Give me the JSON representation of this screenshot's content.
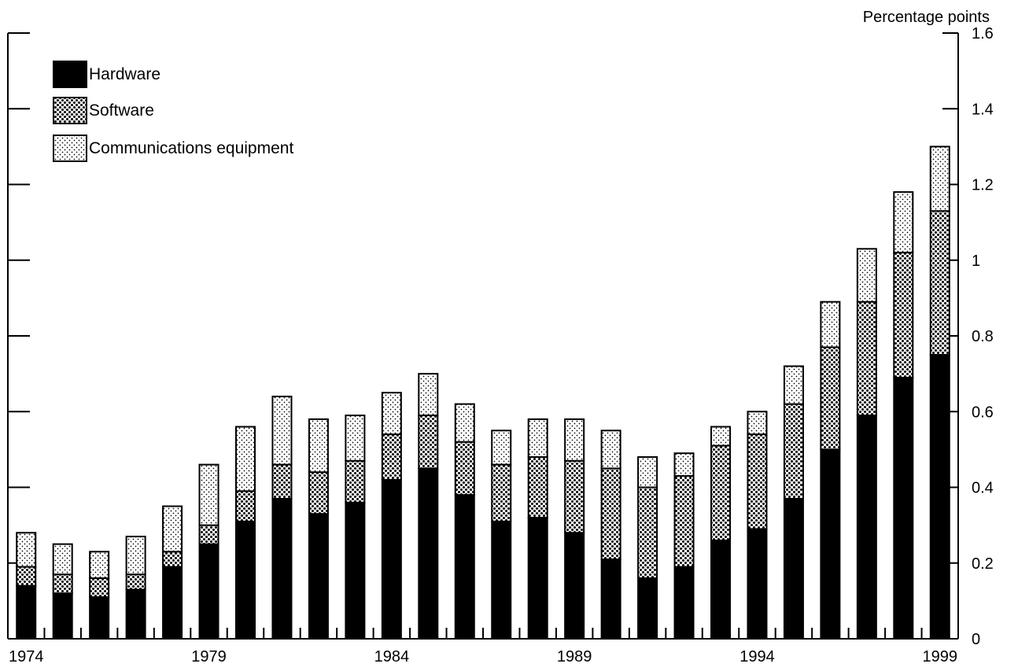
{
  "chart_data": {
    "type": "bar",
    "stacked": true,
    "title": "",
    "y_unit_label": "Percentage points",
    "x": [
      1974,
      1975,
      1976,
      1977,
      1978,
      1979,
      1980,
      1981,
      1982,
      1983,
      1984,
      1985,
      1986,
      1987,
      1988,
      1989,
      1990,
      1991,
      1992,
      1993,
      1994,
      1995,
      1996,
      1997,
      1998,
      1999
    ],
    "x_tick_labels": [
      "1974",
      "1979",
      "1984",
      "1989",
      "1994",
      "1999"
    ],
    "y_ticks": [
      0,
      0.2,
      0.4,
      0.6,
      0.8,
      1,
      1.2,
      1.4,
      1.6
    ],
    "y_tick_labels": [
      "0",
      "0.2",
      "0.4",
      "0.6",
      "0.8",
      "1",
      "1.2",
      "1.4",
      "1.6"
    ],
    "ylim": [
      0,
      1.6
    ],
    "grid": false,
    "legend_position": "top-left",
    "series": [
      {
        "name": "Hardware",
        "pattern": "solid",
        "values": [
          0.14,
          0.12,
          0.11,
          0.13,
          0.19,
          0.25,
          0.31,
          0.37,
          0.33,
          0.36,
          0.42,
          0.45,
          0.38,
          0.31,
          0.32,
          0.28,
          0.21,
          0.16,
          0.19,
          0.26,
          0.29,
          0.37,
          0.5,
          0.59,
          0.69,
          0.75
        ]
      },
      {
        "name": "Software",
        "pattern": "cross-hatch",
        "values": [
          0.05,
          0.05,
          0.05,
          0.04,
          0.04,
          0.05,
          0.08,
          0.09,
          0.11,
          0.11,
          0.12,
          0.14,
          0.14,
          0.15,
          0.16,
          0.19,
          0.24,
          0.24,
          0.24,
          0.25,
          0.25,
          0.25,
          0.27,
          0.3,
          0.33,
          0.38
        ]
      },
      {
        "name": "Communications equipment",
        "pattern": "dotted",
        "values": [
          0.09,
          0.08,
          0.07,
          0.1,
          0.12,
          0.16,
          0.17,
          0.18,
          0.14,
          0.12,
          0.11,
          0.11,
          0.1,
          0.09,
          0.1,
          0.11,
          0.1,
          0.08,
          0.06,
          0.05,
          0.06,
          0.1,
          0.12,
          0.14,
          0.16,
          0.17
        ]
      }
    ],
    "colors": {
      "stroke": "#000000",
      "background": "#ffffff"
    }
  }
}
